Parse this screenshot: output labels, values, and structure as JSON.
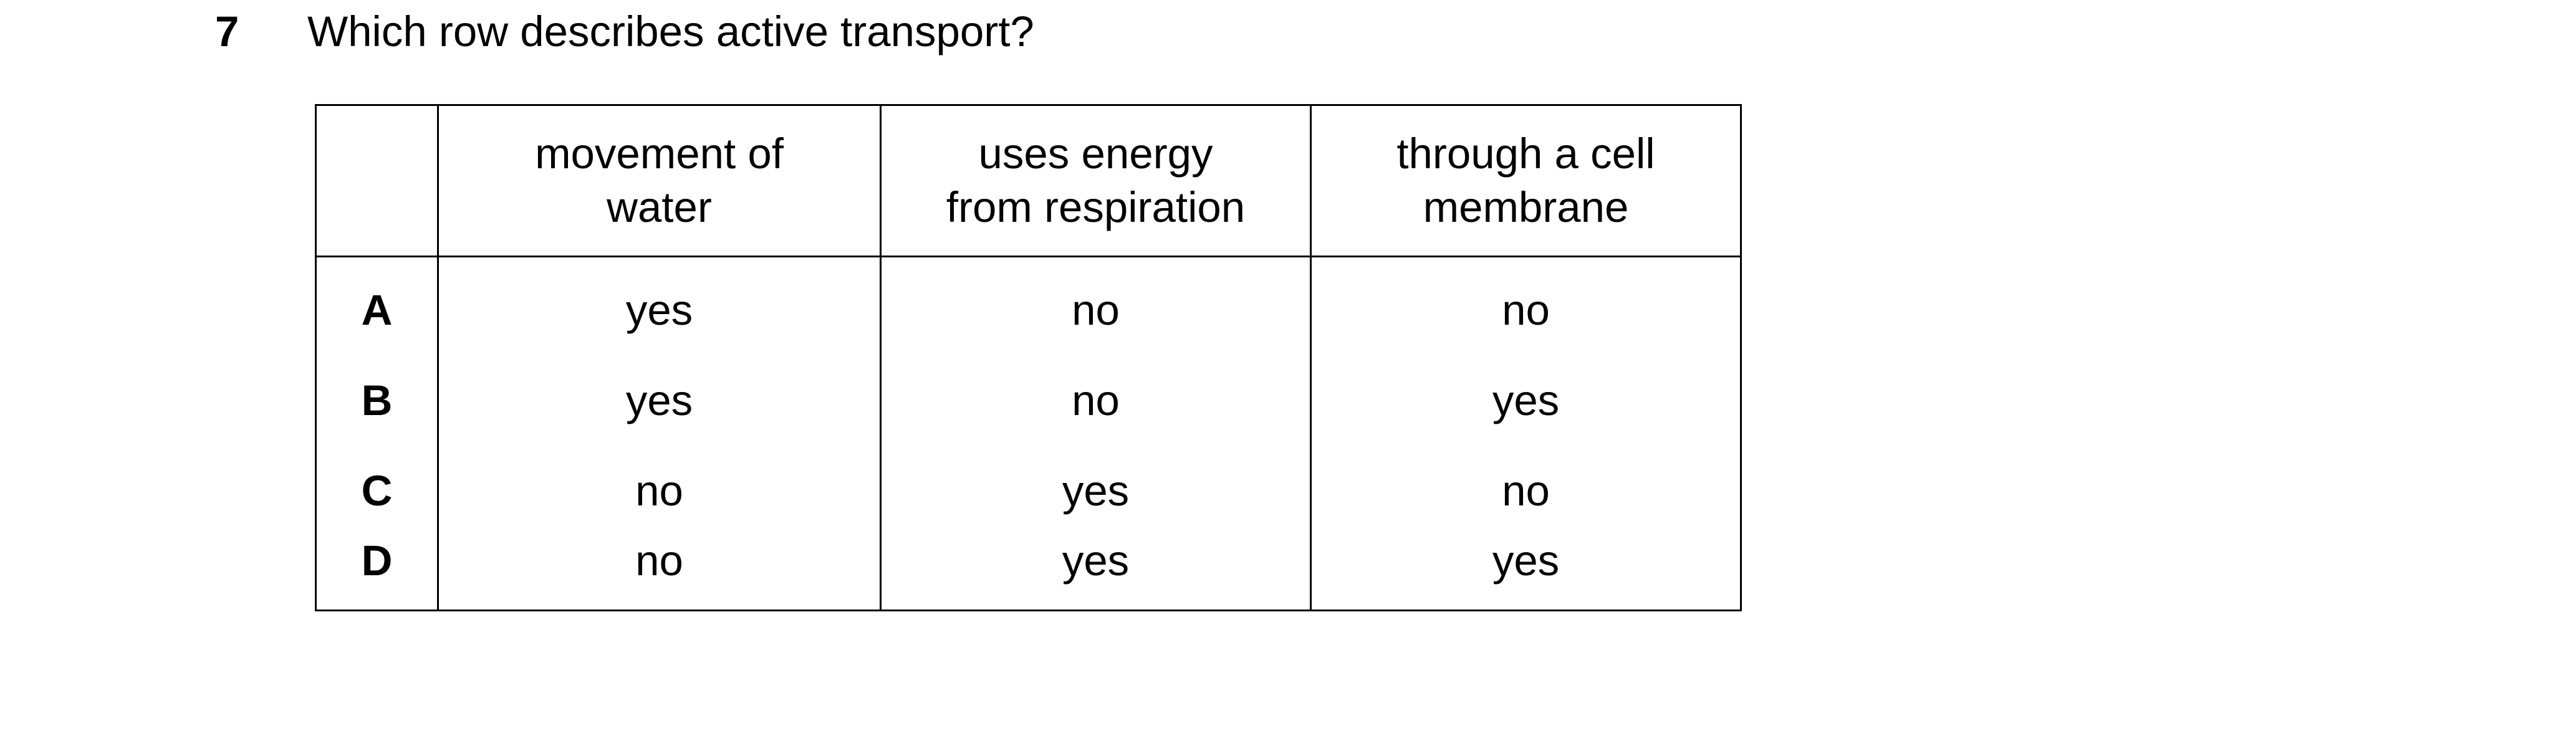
{
  "question": {
    "number": "7",
    "text": "Which row describes active transport?"
  },
  "table": {
    "headers": [
      [
        "movement of",
        "water"
      ],
      [
        "uses energy",
        "from respiration"
      ],
      [
        "through a cell",
        "membrane"
      ]
    ],
    "rows": [
      {
        "label": "A",
        "cells": [
          "yes",
          "no",
          "no"
        ]
      },
      {
        "label": "B",
        "cells": [
          "yes",
          "no",
          "yes"
        ]
      },
      {
        "label": "C",
        "cells": [
          "no",
          "yes",
          "no"
        ]
      },
      {
        "label": "D",
        "cells": [
          "no",
          "yes",
          "yes"
        ]
      }
    ]
  }
}
